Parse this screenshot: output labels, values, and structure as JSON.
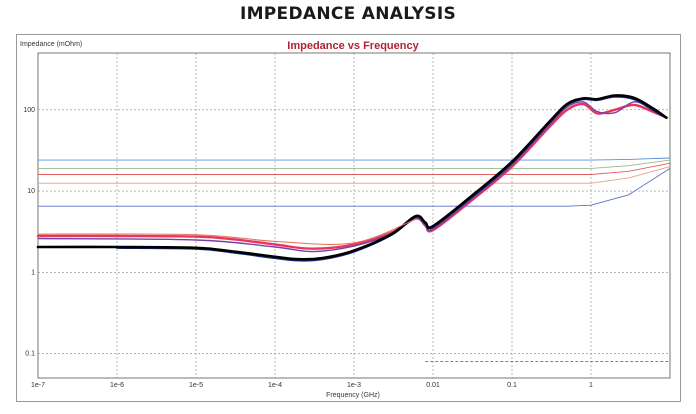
{
  "page_heading": "IMPEDANCE ANALYSIS",
  "chart_data": {
    "type": "line",
    "title": "Impedance vs Frequency",
    "xlabel": "Frequency (GHz)",
    "ylabel": "Impedance (mOhm)",
    "x_scale": "log",
    "y_scale": "log",
    "xlim": [
      1e-07,
      10
    ],
    "ylim": [
      0.05,
      500
    ],
    "x_ticks": [
      {
        "value": 1e-07,
        "label": "1e-7"
      },
      {
        "value": 1e-06,
        "label": "1e-6"
      },
      {
        "value": 1e-05,
        "label": "1e-5"
      },
      {
        "value": 0.0001,
        "label": "1e-4"
      },
      {
        "value": 0.001,
        "label": "1e-3"
      },
      {
        "value": 0.01,
        "label": "0.01"
      },
      {
        "value": 0.1,
        "label": "0.1"
      },
      {
        "value": 1,
        "label": "1"
      }
    ],
    "y_ticks": [
      {
        "value": 100,
        "label": "100"
      },
      {
        "value": 10,
        "label": "10"
      },
      {
        "value": 1,
        "label": "1"
      },
      {
        "value": 0.1,
        "label": "0.1"
      }
    ],
    "grid": true,
    "series": [
      {
        "color": "#e8365a",
        "width": 2.4,
        "points": [
          [
            1e-07,
            2.8
          ],
          [
            1e-06,
            2.8
          ],
          [
            1e-05,
            2.75
          ],
          [
            3e-05,
            2.55
          ],
          [
            0.0001,
            2.2
          ],
          [
            0.0003,
            1.95
          ],
          [
            0.001,
            2.2
          ],
          [
            0.003,
            3.1
          ],
          [
            0.006,
            4.6
          ],
          [
            0.008,
            3.8
          ],
          [
            0.01,
            3.3
          ],
          [
            0.03,
            7.5
          ],
          [
            0.1,
            20
          ],
          [
            0.3,
            62
          ],
          [
            0.5,
            100
          ],
          [
            0.8,
            118
          ],
          [
            1.2,
            90
          ],
          [
            2,
            100
          ],
          [
            3.5,
            115
          ],
          [
            6,
            95
          ],
          [
            9,
            80
          ]
        ]
      },
      {
        "color": "#7b3fa6",
        "width": 1.4,
        "points": [
          [
            1e-07,
            2.6
          ],
          [
            1e-05,
            2.5
          ],
          [
            0.0001,
            2.05
          ],
          [
            0.0003,
            1.8
          ],
          [
            0.001,
            2.1
          ],
          [
            0.003,
            3.0
          ],
          [
            0.006,
            4.6
          ],
          [
            0.008,
            3.7
          ],
          [
            0.01,
            3.4
          ],
          [
            0.03,
            7.8
          ],
          [
            0.1,
            21
          ],
          [
            0.3,
            66
          ],
          [
            0.5,
            108
          ],
          [
            0.8,
            125
          ],
          [
            1.2,
            95
          ],
          [
            2,
            92
          ],
          [
            3.5,
            125
          ],
          [
            6,
            102
          ],
          [
            9,
            80
          ]
        ]
      },
      {
        "color": "#1d2d8a",
        "width": 2.2,
        "points": [
          [
            1e-06,
            2.0
          ],
          [
            1e-05,
            1.95
          ],
          [
            3e-05,
            1.75
          ],
          [
            0.0001,
            1.5
          ],
          [
            0.0002,
            1.4
          ],
          [
            0.0004,
            1.45
          ],
          [
            0.001,
            1.8
          ],
          [
            0.003,
            2.9
          ],
          [
            0.006,
            4.8
          ],
          [
            0.008,
            4.0
          ],
          [
            0.01,
            3.6
          ],
          [
            0.03,
            8.2
          ],
          [
            0.1,
            22
          ],
          [
            0.3,
            70
          ],
          [
            0.5,
            115
          ],
          [
            0.8,
            135
          ],
          [
            1.2,
            132
          ],
          [
            2,
            145
          ],
          [
            3.5,
            135
          ],
          [
            6,
            100
          ],
          [
            9,
            80
          ]
        ]
      },
      {
        "color": "#000000",
        "width": 2.6,
        "points": [
          [
            1e-07,
            2.05
          ],
          [
            1e-06,
            2.05
          ],
          [
            1e-05,
            2.0
          ],
          [
            3e-05,
            1.8
          ],
          [
            0.0001,
            1.55
          ],
          [
            0.0002,
            1.45
          ],
          [
            0.0004,
            1.5
          ],
          [
            0.001,
            1.85
          ],
          [
            0.003,
            2.95
          ],
          [
            0.006,
            4.9
          ],
          [
            0.008,
            4.1
          ],
          [
            0.01,
            3.7
          ],
          [
            0.03,
            8.5
          ],
          [
            0.1,
            23
          ],
          [
            0.3,
            72
          ],
          [
            0.5,
            118
          ],
          [
            0.8,
            138
          ],
          [
            1.2,
            135
          ],
          [
            2,
            150
          ],
          [
            3.5,
            140
          ],
          [
            6,
            105
          ],
          [
            9,
            80
          ]
        ]
      },
      {
        "color": "#e07060",
        "width": 1,
        "points": [
          [
            1e-07,
            2.95
          ],
          [
            1e-05,
            2.9
          ],
          [
            0.0001,
            2.4
          ],
          [
            0.001,
            2.3
          ],
          [
            0.006,
            4.5
          ]
        ]
      }
    ],
    "reference_lines": [
      {
        "color": "#5b8fd8",
        "value": 24,
        "points": [
          [
            1e-07,
            24
          ],
          [
            1,
            24
          ],
          [
            3,
            24.5
          ],
          [
            10,
            25.5
          ]
        ]
      },
      {
        "color": "#9ab88a",
        "value": 19,
        "points": [
          [
            1e-07,
            19
          ],
          [
            1,
            19
          ],
          [
            3,
            20.5
          ],
          [
            10,
            24
          ]
        ]
      },
      {
        "color": "#e06060",
        "value": 16,
        "points": [
          [
            1e-07,
            16
          ],
          [
            1,
            16
          ],
          [
            3,
            17.5
          ],
          [
            10,
            22
          ]
        ]
      },
      {
        "color": "#e8a080",
        "value": 12.5,
        "points": [
          [
            1e-07,
            12.5
          ],
          [
            1,
            12.5
          ],
          [
            3,
            14.5
          ],
          [
            10,
            20
          ]
        ]
      },
      {
        "color": "#5d6fc8",
        "value": 6.5,
        "points": [
          [
            1e-07,
            6.5
          ],
          [
            0.5,
            6.5
          ],
          [
            1,
            6.7
          ],
          [
            3,
            9
          ],
          [
            10,
            19
          ]
        ]
      }
    ],
    "marker_line": {
      "points": [
        [
          0.008,
          0.08
        ],
        [
          10,
          0.08
        ]
      ],
      "style": "dashed"
    }
  }
}
